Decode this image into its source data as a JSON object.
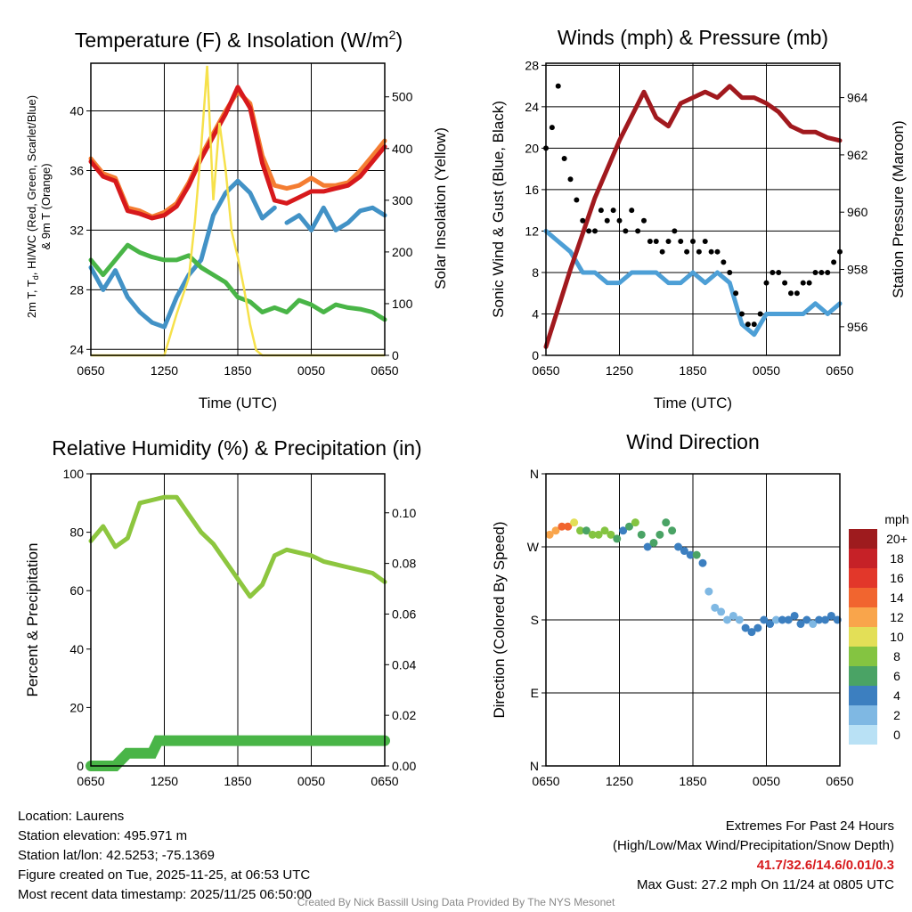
{
  "colors": {
    "temp": "#d7191c",
    "wind_chill": "#fdae61",
    "orange": "#f47d32",
    "dewpoint": "#4292c6",
    "green": "#49b547",
    "solar": "#f6e14b",
    "maroon": "#a1191e",
    "gust": "#000000",
    "sonic": "#4d9fd6",
    "rh": "#8dc63f",
    "precip": "#49b547"
  },
  "chart_data": [
    {
      "id": "temperature",
      "type": "line",
      "title": "Temperature (F) & Insolation (W/m",
      "title_sup": "2",
      "title_end": ")",
      "xlabel": "Time (UTC)",
      "ylabel_line1": "2m T, T",
      "ylabel_sub": "d",
      "ylabel_line1_end": ", HI/WC (Red, Green, Scarlet/Blue)",
      "ylabel_line2": "& 9m T (Orange)",
      "ylabel_right": "Solar Insolation (Yellow)",
      "xticks": [
        "0650",
        "1250",
        "1850",
        "0050",
        "0650"
      ],
      "yticks": [
        24,
        28,
        32,
        36,
        40
      ],
      "yticks_right": [
        0,
        100,
        200,
        300,
        400,
        500
      ],
      "ylim": [
        23.6,
        43.2
      ],
      "ylim_right": [
        0,
        565
      ],
      "xlim": [
        0,
        24
      ],
      "series": [
        {
          "name": "9m T",
          "color": "orange",
          "x": [
            0,
            1,
            2,
            3,
            4,
            5,
            6,
            7,
            8,
            9,
            10,
            11,
            12,
            13,
            14,
            15,
            16,
            17,
            18,
            19,
            20,
            21,
            22,
            23,
            24
          ],
          "values": [
            36.8,
            35.8,
            35.5,
            33.5,
            33.3,
            32.9,
            33.2,
            33.8,
            35.2,
            37.0,
            38.5,
            40.0,
            41.3,
            40.5,
            37.0,
            35.0,
            34.8,
            35.0,
            35.5,
            35.0,
            35.0,
            35.2,
            36.0,
            37.0,
            38.0
          ]
        },
        {
          "name": "2m T / WC",
          "color": "temp",
          "x": [
            0,
            1,
            2,
            3,
            4,
            5,
            6,
            7,
            8,
            9,
            10,
            11,
            12,
            13,
            14,
            15,
            16,
            17,
            18,
            19,
            20,
            21,
            22,
            23,
            24
          ],
          "values": [
            36.6,
            35.6,
            35.3,
            33.3,
            33.1,
            32.8,
            33.0,
            33.6,
            35.0,
            36.8,
            38.3,
            39.8,
            41.6,
            40.2,
            36.5,
            34.0,
            33.8,
            34.2,
            34.6,
            34.6,
            34.8,
            35.0,
            35.6,
            36.6,
            37.6
          ]
        },
        {
          "name": "Dewpoint",
          "color": "dewpoint",
          "x": [
            0,
            1,
            2,
            3,
            4,
            5,
            6,
            7,
            8,
            9,
            10,
            11,
            12,
            13,
            14,
            15,
            15.5,
            16,
            17,
            18,
            19,
            20,
            21,
            22,
            23,
            24
          ],
          "values": [
            29.5,
            28.0,
            29.3,
            27.5,
            26.5,
            25.8,
            25.5,
            27.5,
            29.0,
            30.0,
            33.0,
            34.5,
            35.3,
            34.5,
            32.8,
            33.5,
            null,
            32.5,
            33.0,
            32.0,
            33.5,
            32.0,
            32.5,
            33.3,
            33.5,
            33.0
          ]
        },
        {
          "name": "Green",
          "color": "green",
          "x": [
            0,
            1,
            2,
            3,
            4,
            5,
            6,
            7,
            8,
            9,
            10,
            11,
            12,
            13,
            14,
            15,
            16,
            17,
            18,
            19,
            20,
            21,
            22,
            23,
            24
          ],
          "values": [
            30.0,
            29.0,
            30.0,
            31.0,
            30.5,
            30.2,
            30.0,
            30.0,
            30.3,
            29.5,
            29.0,
            28.5,
            27.5,
            27.2,
            26.5,
            26.8,
            26.5,
            27.3,
            27.0,
            26.5,
            27.0,
            26.8,
            26.7,
            26.5,
            26.0
          ]
        },
        {
          "name": "Solar Insolation",
          "color": "solar",
          "axis": "right",
          "x": [
            0,
            6,
            7,
            8,
            8.5,
            9,
            9.5,
            10,
            10.5,
            11,
            11.5,
            12,
            12.5,
            13,
            13.5,
            14,
            24
          ],
          "values": [
            0,
            0,
            80,
            150,
            260,
            400,
            560,
            300,
            450,
            360,
            240,
            190,
            130,
            60,
            10,
            0,
            0
          ]
        }
      ]
    },
    {
      "id": "winds",
      "type": "line",
      "title": "Winds (mph) & Pressure (mb)",
      "xlabel": "Time (UTC)",
      "ylabel": "Sonic Wind & Gust (Blue, Black)",
      "ylabel_right": "Station Pressure (Maroon)",
      "xticks": [
        "0650",
        "1250",
        "1850",
        "0050",
        "0650"
      ],
      "yticks": [
        0,
        4,
        8,
        12,
        16,
        20,
        24,
        28
      ],
      "yticks_right": [
        956,
        958,
        960,
        962,
        964
      ],
      "ylim": [
        0,
        28.2
      ],
      "ylim_right": [
        955,
        965.2
      ],
      "xlim": [
        0,
        24
      ],
      "series": [
        {
          "name": "Station Pressure",
          "color": "maroon",
          "axis": "right",
          "x": [
            0,
            2,
            4,
            6,
            8,
            9,
            10,
            11,
            12,
            13,
            14,
            15,
            16,
            17,
            18,
            19,
            20,
            21,
            22,
            23,
            24
          ],
          "values": [
            955.3,
            958.0,
            960.5,
            962.5,
            964.2,
            963.3,
            963.0,
            963.8,
            964.0,
            964.2,
            964.0,
            964.4,
            964.0,
            964.0,
            963.8,
            963.5,
            963.0,
            962.8,
            962.8,
            962.6,
            962.5
          ]
        },
        {
          "name": "Sonic Wind",
          "color": "sonic",
          "x": [
            0,
            1,
            2,
            3,
            4,
            5,
            6,
            7,
            8,
            9,
            10,
            11,
            12,
            13,
            14,
            15,
            16,
            17,
            18,
            19,
            20,
            21,
            22,
            23,
            24
          ],
          "values": [
            12,
            11,
            10,
            8,
            8,
            7,
            7,
            8,
            8,
            8,
            7,
            7,
            8,
            7,
            8,
            7,
            3,
            2,
            4,
            4,
            4,
            4,
            5,
            4,
            5
          ]
        },
        {
          "name": "Gust",
          "color": "gust",
          "type": "scatter",
          "x": [
            0,
            0.5,
            1,
            1.5,
            2,
            2.5,
            3,
            3.5,
            4,
            4.5,
            5,
            5.5,
            6,
            6.5,
            7,
            7.5,
            8,
            8.5,
            9,
            9.5,
            10,
            10.5,
            11,
            11.5,
            12,
            12.5,
            13,
            13.5,
            14,
            14.5,
            15,
            15.5,
            16,
            16.5,
            17,
            17.5,
            18,
            18.5,
            19,
            19.5,
            20,
            20.5,
            21,
            21.5,
            22,
            22.5,
            23,
            23.5,
            24
          ],
          "values": [
            20,
            22,
            26,
            19,
            17,
            15,
            13,
            12,
            12,
            14,
            13,
            14,
            13,
            12,
            14,
            12,
            13,
            11,
            11,
            10,
            11,
            12,
            11,
            10,
            11,
            10,
            11,
            10,
            10,
            9,
            8,
            6,
            4,
            3,
            3,
            4,
            7,
            8,
            8,
            7,
            6,
            6,
            7,
            7,
            8,
            8,
            8,
            9,
            10
          ]
        }
      ]
    },
    {
      "id": "humidity",
      "type": "line",
      "title": "Relative Humidity (%) & Precipitation (in)",
      "ylabel": "Percent & Precipitation",
      "xticks": [
        "0650",
        "1250",
        "1850",
        "0050",
        "0650"
      ],
      "yticks": [
        0,
        20,
        40,
        60,
        80,
        100
      ],
      "yticks_right": [
        "0.00",
        "0.02",
        "0.04",
        "0.06",
        "0.08",
        "0.10"
      ],
      "ylim": [
        0,
        100
      ],
      "ylim_right": [
        0,
        0.1154
      ],
      "xlim": [
        0,
        24
      ],
      "series": [
        {
          "name": "Relative Humidity",
          "color": "rh",
          "x": [
            0,
            1,
            2,
            3,
            4,
            5,
            6,
            7,
            8,
            9,
            10,
            11,
            12,
            13,
            14,
            15,
            16,
            17,
            18,
            19,
            20,
            21,
            22,
            23,
            24
          ],
          "values": [
            77,
            82,
            75,
            78,
            90,
            91,
            92,
            92,
            86,
            80,
            76,
            70,
            64,
            58,
            62,
            72,
            74,
            73,
            72,
            70,
            69,
            68,
            67,
            66,
            63
          ]
        },
        {
          "name": "Precipitation",
          "color": "precip",
          "axis": "right",
          "x": [
            0,
            2,
            3,
            4,
            5,
            5.5,
            6,
            8,
            10,
            12,
            14,
            16,
            18,
            20,
            22,
            24
          ],
          "values": [
            0.0,
            0.0,
            0.005,
            0.005,
            0.005,
            0.01,
            0.01,
            0.01,
            0.01,
            0.01,
            0.01,
            0.01,
            0.01,
            0.01,
            0.01,
            0.01
          ]
        }
      ]
    },
    {
      "id": "wind_direction",
      "type": "scatter",
      "title": "Wind Direction",
      "ylabel": "Direction (Colored By Speed)",
      "xticks": [
        "0650",
        "1250",
        "1850",
        "0050",
        "0650"
      ],
      "yticks": [
        "N",
        "E",
        "S",
        "W",
        "N"
      ],
      "ylim": [
        0,
        360
      ],
      "xlim": [
        0,
        24
      ],
      "colorbar_title": "mph",
      "colorbar_labels": [
        "20+",
        "18",
        "16",
        "14",
        "12",
        "10",
        "8",
        "6",
        "4",
        "2",
        "0"
      ],
      "colorbar_colors": [
        "#9e1b1e",
        "#c62127",
        "#e2372a",
        "#f1652f",
        "#f9a54b",
        "#e3df57",
        "#84c441",
        "#4aa365",
        "#3c7fc0",
        "#7fb8e3",
        "#b9e1f5"
      ],
      "x": [
        0.3,
        0.8,
        1.3,
        1.8,
        2.3,
        2.8,
        3.3,
        3.8,
        4.3,
        4.8,
        5.3,
        5.8,
        6.3,
        6.8,
        7.3,
        7.8,
        8.3,
        8.8,
        9.3,
        9.8,
        10.3,
        10.8,
        11.3,
        11.8,
        12.3,
        12.8,
        13.3,
        13.8,
        14.3,
        14.8,
        15.3,
        15.8,
        16.3,
        16.8,
        17.3,
        17.8,
        18.3,
        18.8,
        19.3,
        19.8,
        20.3,
        20.8,
        21.3,
        21.8,
        22.3,
        22.8,
        23.3,
        23.8
      ],
      "values": [
        285,
        290,
        295,
        295,
        300,
        290,
        290,
        285,
        285,
        290,
        285,
        280,
        290,
        295,
        300,
        285,
        270,
        275,
        285,
        300,
        290,
        270,
        265,
        260,
        260,
        250,
        215,
        195,
        190,
        180,
        185,
        180,
        170,
        165,
        170,
        180,
        175,
        180,
        180,
        180,
        185,
        175,
        180,
        175,
        180,
        180,
        185,
        180
      ],
      "speeds": [
        12,
        13,
        15,
        14,
        10,
        8,
        7,
        8,
        8,
        8,
        9,
        7,
        5,
        6,
        8,
        7,
        5,
        6,
        7,
        7,
        6,
        5,
        5,
        5,
        6,
        4,
        3,
        2,
        2,
        3,
        3,
        3,
        4,
        4,
        4,
        4,
        4,
        3,
        4,
        4,
        4,
        4,
        4,
        3,
        4,
        4,
        4,
        4
      ]
    }
  ],
  "footer_left": [
    "Location: Laurens",
    "Station elevation: 495.971 m",
    "Station lat/lon: 42.5253; -75.1369",
    "Figure created on Tue, 2025-11-25, at 06:53 UTC",
    "Most recent data timestamp: 2025/11/25 06:50:00"
  ],
  "footer_right": {
    "line1": "Extremes For Past 24 Hours",
    "line2": "(High/Low/Max Wind/Precipitation/Snow Depth)",
    "extremes": "41.7/32.6/14.6/0.01/0.3",
    "gust": "Max Gust: 27.2 mph On 11/24 at 0805 UTC"
  },
  "credit": "Created By Nick Bassill Using Data Provided By The NYS Mesonet"
}
